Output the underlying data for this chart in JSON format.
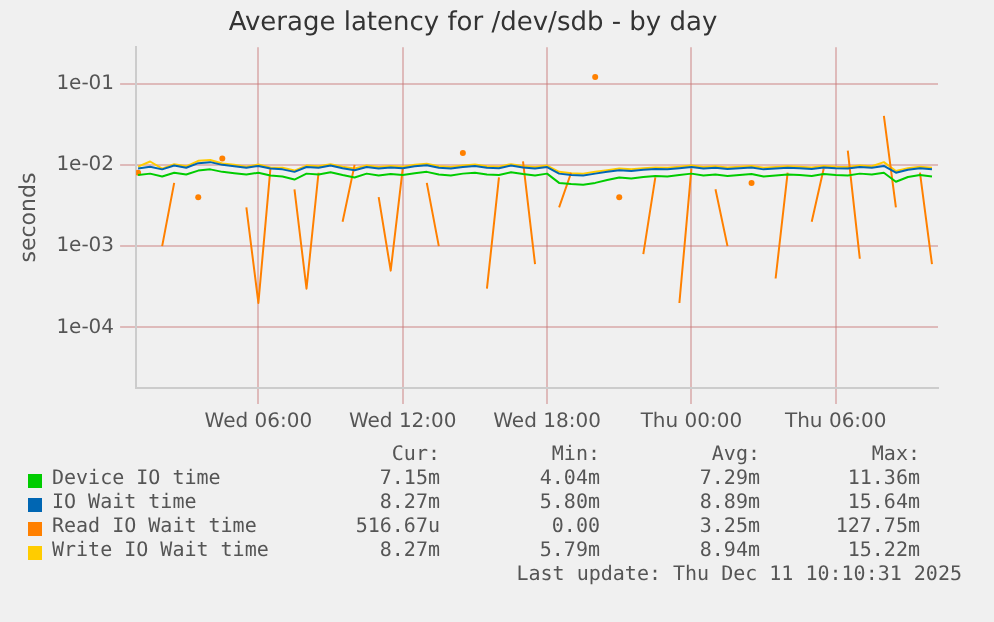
{
  "chart_data": {
    "type": "line",
    "title": "Average latency for /dev/sdb - by day",
    "ylabel": "seconds",
    "x": [
      "2025-12-10T01:00",
      "2025-12-10T01:30",
      "2025-12-10T02:00",
      "2025-12-10T02:30",
      "2025-12-10T03:00",
      "2025-12-10T03:30",
      "2025-12-10T04:00",
      "2025-12-10T04:30",
      "2025-12-10T05:00",
      "2025-12-10T05:30",
      "2025-12-10T06:00",
      "2025-12-10T06:30",
      "2025-12-10T07:00",
      "2025-12-10T07:30",
      "2025-12-10T08:00",
      "2025-12-10T08:30",
      "2025-12-10T09:00",
      "2025-12-10T09:30",
      "2025-12-10T10:00",
      "2025-12-10T10:30",
      "2025-12-10T11:00",
      "2025-12-10T11:30",
      "2025-12-10T12:00",
      "2025-12-10T12:30",
      "2025-12-10T13:00",
      "2025-12-10T13:30",
      "2025-12-10T14:00",
      "2025-12-10T14:30",
      "2025-12-10T15:00",
      "2025-12-10T15:30",
      "2025-12-10T16:00",
      "2025-12-10T16:30",
      "2025-12-10T17:00",
      "2025-12-10T17:30",
      "2025-12-10T18:00",
      "2025-12-10T18:30",
      "2025-12-10T19:00",
      "2025-12-10T19:30",
      "2025-12-10T20:00",
      "2025-12-10T20:30",
      "2025-12-10T21:00",
      "2025-12-10T21:30",
      "2025-12-10T22:00",
      "2025-12-10T22:30",
      "2025-12-10T23:00",
      "2025-12-10T23:30",
      "2025-12-11T00:00",
      "2025-12-11T00:30",
      "2025-12-11T01:00",
      "2025-12-11T01:30",
      "2025-12-11T02:00",
      "2025-12-11T02:30",
      "2025-12-11T03:00",
      "2025-12-11T03:30",
      "2025-12-11T04:00",
      "2025-12-11T04:30",
      "2025-12-11T05:00",
      "2025-12-11T05:30",
      "2025-12-11T06:00",
      "2025-12-11T06:30",
      "2025-12-11T07:00",
      "2025-12-11T07:30",
      "2025-12-11T08:00",
      "2025-12-11T08:30",
      "2025-12-11T09:00",
      "2025-12-11T09:30",
      "2025-12-11T10:00"
    ],
    "xlim": [
      "2025-12-10T00:55",
      "2025-12-11T10:15"
    ],
    "xticks": [
      {
        "value": "2025-12-10T06:00",
        "label": "Wed 06:00"
      },
      {
        "value": "2025-12-10T12:00",
        "label": "Wed 12:00"
      },
      {
        "value": "2025-12-10T18:00",
        "label": "Wed 18:00"
      },
      {
        "value": "2025-12-11T00:00",
        "label": "Thu 00:00"
      },
      {
        "value": "2025-12-11T06:00",
        "label": "Thu 06:00"
      }
    ],
    "log": true,
    "ylim": [
      1.8e-05,
      0.28
    ],
    "yticks": [
      {
        "value": 0.0001,
        "label": "1e-04"
      },
      {
        "value": 0.001,
        "label": "1e-03"
      },
      {
        "value": 0.01,
        "label": "1e-02"
      },
      {
        "value": 0.1,
        "label": "1e-01"
      }
    ],
    "grid": true,
    "legend": "bottom",
    "marker": "none",
    "line_style": "solid",
    "series": [
      {
        "name": "Device IO time",
        "color": "#00cc00",
        "values": [
          0.0075,
          0.0078,
          0.0072,
          0.008,
          0.0076,
          0.0085,
          0.0088,
          0.0082,
          0.0079,
          0.0076,
          0.008,
          0.0074,
          0.0072,
          0.0066,
          0.0078,
          0.0076,
          0.0081,
          0.0075,
          0.007,
          0.0078,
          0.0074,
          0.0077,
          0.0075,
          0.0079,
          0.0082,
          0.0076,
          0.0074,
          0.0078,
          0.008,
          0.0076,
          0.0075,
          0.0081,
          0.0077,
          0.0074,
          0.0078,
          0.006,
          0.0058,
          0.0057,
          0.006,
          0.0065,
          0.007,
          0.0068,
          0.0071,
          0.0073,
          0.0072,
          0.0075,
          0.0078,
          0.0074,
          0.0076,
          0.0073,
          0.0075,
          0.0077,
          0.0072,
          0.0074,
          0.0076,
          0.0075,
          0.0073,
          0.0077,
          0.0075,
          0.0074,
          0.0078,
          0.0076,
          0.008,
          0.0062,
          0.0071,
          0.0075,
          0.0072
        ]
      },
      {
        "name": "IO Wait time",
        "color": "#0066b3",
        "values": [
          0.009,
          0.0095,
          0.0088,
          0.0098,
          0.0092,
          0.0105,
          0.0108,
          0.01,
          0.0096,
          0.0092,
          0.0097,
          0.009,
          0.0088,
          0.0082,
          0.0094,
          0.0092,
          0.0098,
          0.0091,
          0.0086,
          0.0094,
          0.009,
          0.0093,
          0.0091,
          0.0096,
          0.0099,
          0.0092,
          0.009,
          0.0094,
          0.0097,
          0.0092,
          0.0091,
          0.0098,
          0.0093,
          0.009,
          0.0094,
          0.0078,
          0.0075,
          0.0074,
          0.0078,
          0.0082,
          0.0086,
          0.0084,
          0.0087,
          0.0089,
          0.0088,
          0.0091,
          0.0094,
          0.009,
          0.0092,
          0.0089,
          0.0091,
          0.0093,
          0.0088,
          0.009,
          0.0092,
          0.0091,
          0.0089,
          0.0093,
          0.0091,
          0.009,
          0.0094,
          0.0092,
          0.0097,
          0.008,
          0.0087,
          0.0091,
          0.0088
        ]
      },
      {
        "name": "Read IO Wait time",
        "color": "#ff8000",
        "values": [
          0.008,
          null,
          0.001,
          0.006,
          null,
          0.004,
          null,
          0.012,
          null,
          0.003,
          0.0002,
          0.009,
          null,
          0.005,
          0.0003,
          0.008,
          null,
          0.002,
          0.01,
          null,
          0.004,
          0.0005,
          0.009,
          null,
          0.006,
          0.001,
          null,
          0.014,
          null,
          0.0003,
          0.007,
          null,
          0.011,
          0.0006,
          null,
          0.003,
          0.008,
          null,
          0.12,
          null,
          0.004,
          null,
          0.0008,
          0.007,
          null,
          0.0002,
          0.009,
          null,
          0.005,
          0.001,
          null,
          0.006,
          null,
          0.0004,
          0.008,
          null,
          0.002,
          0.009,
          null,
          0.015,
          0.0007,
          null,
          0.04,
          0.003,
          null,
          0.008,
          0.0006
        ]
      },
      {
        "name": "Write IO Wait time",
        "color": "#ffcc00",
        "values": [
          0.0095,
          0.011,
          0.009,
          0.0102,
          0.0096,
          0.0112,
          0.0115,
          0.0104,
          0.01,
          0.0095,
          0.0101,
          0.0093,
          0.0092,
          0.0085,
          0.0098,
          0.0096,
          0.0102,
          0.0095,
          0.009,
          0.0098,
          0.0094,
          0.0097,
          0.0095,
          0.01,
          0.0103,
          0.0096,
          0.0094,
          0.0098,
          0.0101,
          0.0096,
          0.0095,
          0.0102,
          0.0097,
          0.0094,
          0.0098,
          0.0082,
          0.0079,
          0.0078,
          0.0082,
          0.0086,
          0.009,
          0.0088,
          0.0091,
          0.0093,
          0.0092,
          0.0095,
          0.0098,
          0.0094,
          0.0096,
          0.0093,
          0.0095,
          0.0097,
          0.0092,
          0.0094,
          0.0096,
          0.0095,
          0.0093,
          0.0097,
          0.0095,
          0.0094,
          0.0098,
          0.0096,
          0.0108,
          0.0084,
          0.0091,
          0.0095,
          0.0092
        ]
      }
    ],
    "annotations": [
      "Cur:",
      "Min:",
      "Avg:",
      "Max:",
      "7.15m",
      "4.04m",
      "7.29m",
      "11.36m",
      "8.27m",
      "5.80m",
      "8.89m",
      "15.64m",
      "516.67u",
      "0.00",
      "3.25m",
      "127.75m",
      "8.27m",
      "5.79m",
      "8.94m",
      "15.22m",
      "Last update: Thu Dec 11 10:10:31 2025"
    ]
  }
}
